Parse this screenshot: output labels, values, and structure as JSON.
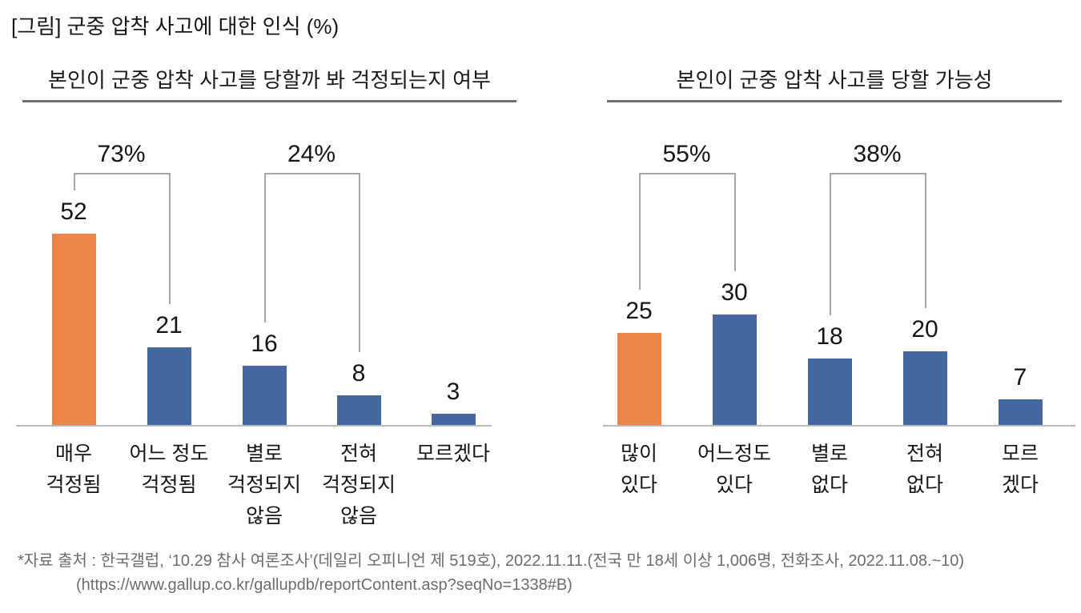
{
  "page": {
    "title": "[그림] 군중 압착 사고에 대한 인식 (%)",
    "source_line1": "*자료 출처 : 한국갤럽, ‘10.29 참사 여론조사’(데일리 오피니언 제 519호), 2022.11.11.(전국 만 18세 이상 1,006명, 전화조사, 2022.11.08.~10)",
    "source_line2": "(https://www.gallup.co.kr/gallupdb/reportContent.asp?seqNo=1338#B)"
  },
  "colors": {
    "highlight_bar": "#EE8548",
    "default_bar": "#44679E",
    "axis_line": "#B9B9B9",
    "bracket_line": "#A6A6A6",
    "header_underline": "#6F6F6F",
    "source_text": "#6C6C6C"
  },
  "chart_data": [
    {
      "type": "bar",
      "title": "본인이 군중 압착 사고를 당할까 봐 걱정되는지 여부",
      "categories": [
        "매우 걱정됨",
        "어느 정도 걱정됨",
        "별로 걱정되지 않음",
        "전혀 걱정되지 않음",
        "모르겠다"
      ],
      "category_lines": [
        [
          "매우",
          "걱정됨"
        ],
        [
          "어느 정도",
          "걱정됨"
        ],
        [
          "별로",
          "걱정되지",
          "않음"
        ],
        [
          "전혀",
          "걱정되지",
          "않음"
        ],
        [
          "모르겠다"
        ]
      ],
      "values": [
        52,
        21,
        16,
        8,
        3
      ],
      "unit": "%",
      "xlabel": "",
      "ylabel": "",
      "ylim": [
        0,
        55
      ],
      "grid": false,
      "legend": false,
      "highlight_index": 0,
      "brackets": [
        {
          "label": "73%",
          "from": 0,
          "to": 1
        },
        {
          "label": "24%",
          "from": 2,
          "to": 3
        }
      ]
    },
    {
      "type": "bar",
      "title": "본인이 군중 압착 사고를 당할 가능성",
      "categories": [
        "많이 있다",
        "어느정도 있다",
        "별로 없다",
        "전혀 없다",
        "모르겠다"
      ],
      "category_lines": [
        [
          "많이",
          "있다"
        ],
        [
          "어느정도",
          "있다"
        ],
        [
          "별로",
          "없다"
        ],
        [
          "전혀",
          "없다"
        ],
        [
          "모르",
          "겠다"
        ]
      ],
      "values": [
        25,
        30,
        18,
        20,
        7
      ],
      "unit": "%",
      "xlabel": "",
      "ylabel": "",
      "ylim": [
        0,
        55
      ],
      "grid": false,
      "legend": false,
      "highlight_index": 0,
      "brackets": [
        {
          "label": "55%",
          "from": 0,
          "to": 1
        },
        {
          "label": "38%",
          "from": 2,
          "to": 3
        }
      ]
    }
  ]
}
